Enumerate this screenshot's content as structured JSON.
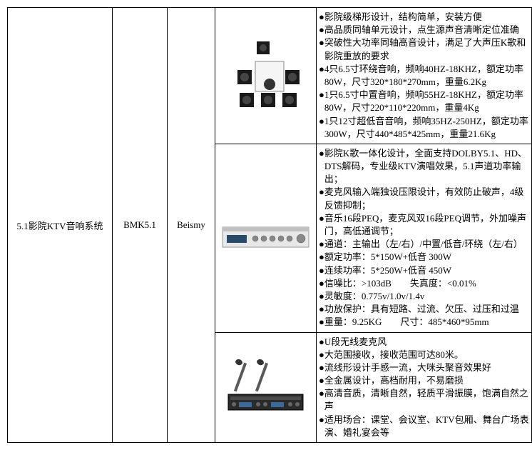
{
  "table": {
    "col1": "5.1影院KTV音响系统",
    "col2": "BMK5.1",
    "col3": "Beismy",
    "rows": [
      {
        "specs": [
          "影院级梯形设计，结构简单，安装方便",
          "高品质同轴单元设计，点生源声音清晰定位准确",
          "突破性大功率同轴高音设计，满足了大声压K歌和影院重放的要求",
          "4只6.5寸环绕音响，频响40HZ-18KHZ，额定功率80W，尺寸320*180*270mm，重量6.2Kg",
          "1只6.5寸中置音响，频响55HZ-18KHZ，额定功率80W，尺寸220*110*220mm，重量4Kg",
          "1只12寸超低音音响，频响35HZ-250HZ，额定功率300W，尺寸440*485*425mm，重量21.6Kg"
        ]
      },
      {
        "specs": [
          " 影院K歌一体化设计，全面支持DOLBY5.1、HD、DTS解码，专业级KTV演唱效果，5.1声道功率输出；",
          "麦克风输入端独设压限设计，有效防止破声，4级反馈抑制；",
          " 音乐16段PEQ，麦克风双16段PEQ调节，外加噪声门，高低通调节；",
          "通道：主输出（左/右）/中置/低音/环绕（左/右）",
          "额定功率：5*150W+低音 300W",
          "连续功率：5*250W+低音 450W",
          "信噪比：>103dB  失真度：<0.01%",
          "灵敏度：0.775v/1.0v/1.4v",
          "功放保护：具有短路、过流、欠压、过压和过温",
          "重量：9.25KG  尺寸：485*460*95mm"
        ]
      },
      {
        "specs": [
          "U段无线麦克风",
          "大范围接收，接收范围可达80米。",
          "流线形设计手感一流，大咪头聚音效果好",
          "全金属设计，高档耐用，不易磨损",
          "高清音质，清晰自然，轻质平滑振膜，饱满自然之声",
          "适用场合：课堂、会议室、KTV包厢、舞台广场表演、婚礼宴会等"
        ]
      }
    ]
  }
}
